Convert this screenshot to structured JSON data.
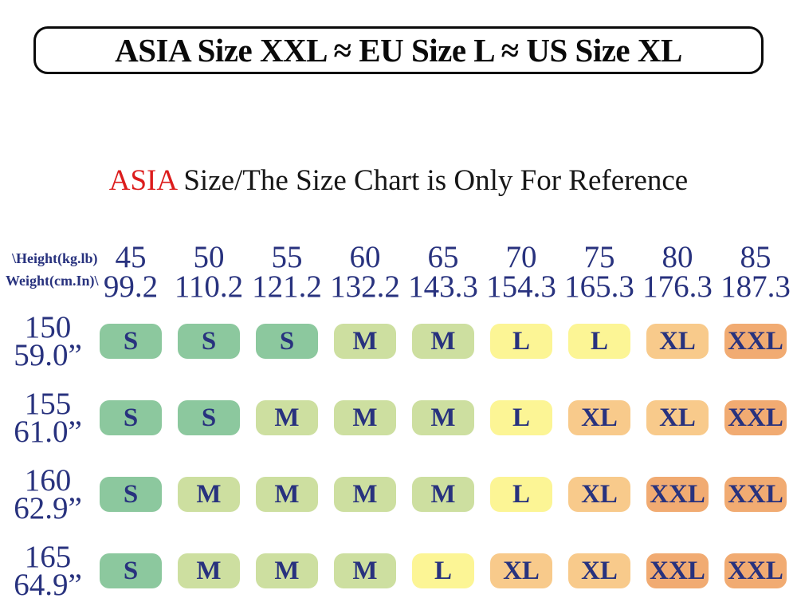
{
  "page": {
    "background": "#ffffff"
  },
  "banner": {
    "text": "ASIA Size XXL ≈ EU Size L ≈ US Size XL",
    "border_color": "#0a0a0a"
  },
  "subtitle": {
    "highlight": "ASIA",
    "rest": " Size/The Size Chart is Only For Reference",
    "highlight_color": "#dc1c1c",
    "text_color": "#161616"
  },
  "table": {
    "corner": {
      "line1": "\\Height(kg.lb)",
      "line2": "Weight(cm.In)\\"
    },
    "text_color": "#28327e",
    "size_colors": {
      "S": "#8cc89e",
      "M": "#cddfa0",
      "L": "#fcf595",
      "XL": "#f8ca8b",
      "XXL": "#f1ab72"
    },
    "columns": [
      {
        "kg": "45",
        "lb": "99.2"
      },
      {
        "kg": "50",
        "lb": "110.2"
      },
      {
        "kg": "55",
        "lb": "121.2"
      },
      {
        "kg": "60",
        "lb": "132.2"
      },
      {
        "kg": "65",
        "lb": "143.3"
      },
      {
        "kg": "70",
        "lb": "154.3"
      },
      {
        "kg": "75",
        "lb": "165.3"
      },
      {
        "kg": "80",
        "lb": "176.3"
      },
      {
        "kg": "85",
        "lb": "187.3"
      }
    ],
    "rows": [
      {
        "cm": "150",
        "inch": "59.0”",
        "sizes": [
          "S",
          "S",
          "S",
          "M",
          "M",
          "L",
          "L",
          "XL",
          "XXL"
        ]
      },
      {
        "cm": "155",
        "inch": "61.0”",
        "sizes": [
          "S",
          "S",
          "M",
          "M",
          "M",
          "L",
          "XL",
          "XL",
          "XXL"
        ]
      },
      {
        "cm": "160",
        "inch": "62.9”",
        "sizes": [
          "S",
          "M",
          "M",
          "M",
          "M",
          "L",
          "XL",
          "XXL",
          "XXL"
        ]
      },
      {
        "cm": "165",
        "inch": "64.9”",
        "sizes": [
          "S",
          "M",
          "M",
          "M",
          "L",
          "XL",
          "XL",
          "XXL",
          "XXL"
        ]
      }
    ]
  },
  "chart_data": {
    "type": "table",
    "title": "ASIA Size/The Size Chart is Only For Reference",
    "weight_kg": [
      45,
      50,
      55,
      60,
      65,
      70,
      75,
      80,
      85
    ],
    "weight_lb": [
      99.2,
      110.2,
      121.2,
      132.2,
      143.3,
      154.3,
      165.3,
      176.3,
      187.3
    ],
    "height_cm": [
      150,
      155,
      160,
      165
    ],
    "height_in": [
      59.0,
      61.0,
      62.9,
      64.9
    ],
    "sizes_by_row": [
      [
        "S",
        "S",
        "S",
        "M",
        "M",
        "L",
        "L",
        "XL",
        "XXL"
      ],
      [
        "S",
        "S",
        "M",
        "M",
        "M",
        "L",
        "XL",
        "XL",
        "XXL"
      ],
      [
        "S",
        "M",
        "M",
        "M",
        "M",
        "L",
        "XL",
        "XXL",
        "XXL"
      ],
      [
        "S",
        "M",
        "M",
        "M",
        "L",
        "XL",
        "XL",
        "XXL",
        "XXL"
      ]
    ]
  }
}
